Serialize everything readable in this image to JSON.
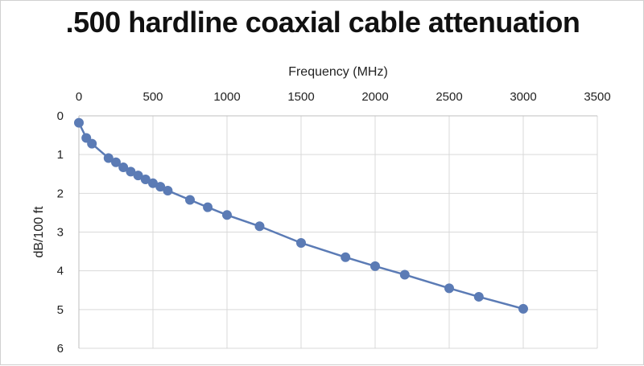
{
  "chart_data": {
    "type": "scatter",
    "title": ".500 hardline coaxial cable attenuation",
    "xlabel": "Frequency (MHz)",
    "ylabel": "dB/100 ft",
    "xlim": [
      0,
      3500
    ],
    "ylim": [
      0,
      6
    ],
    "x_ticks": [
      "0",
      "500",
      "1000",
      "1500",
      "2000",
      "2500",
      "3000",
      "3500"
    ],
    "y_ticks": [
      "0",
      "1",
      "2",
      "3",
      "4",
      "5",
      "6"
    ],
    "x_axis_position": "top",
    "y_axis_inverted": true,
    "grid": true,
    "series_color": "#5b7bb5",
    "series": [
      {
        "x": [
          0,
          50,
          88,
          200,
          250,
          300,
          350,
          400,
          450,
          500,
          550,
          600,
          750,
          870,
          1000,
          1220,
          1500,
          1800,
          2000,
          2200,
          2500,
          2700,
          3000
        ],
        "y": [
          0.18,
          0.57,
          0.72,
          1.09,
          1.2,
          1.33,
          1.44,
          1.54,
          1.64,
          1.74,
          1.83,
          1.93,
          2.17,
          2.36,
          2.56,
          2.85,
          3.28,
          3.65,
          3.88,
          4.1,
          4.45,
          4.67,
          4.98
        ]
      }
    ]
  }
}
